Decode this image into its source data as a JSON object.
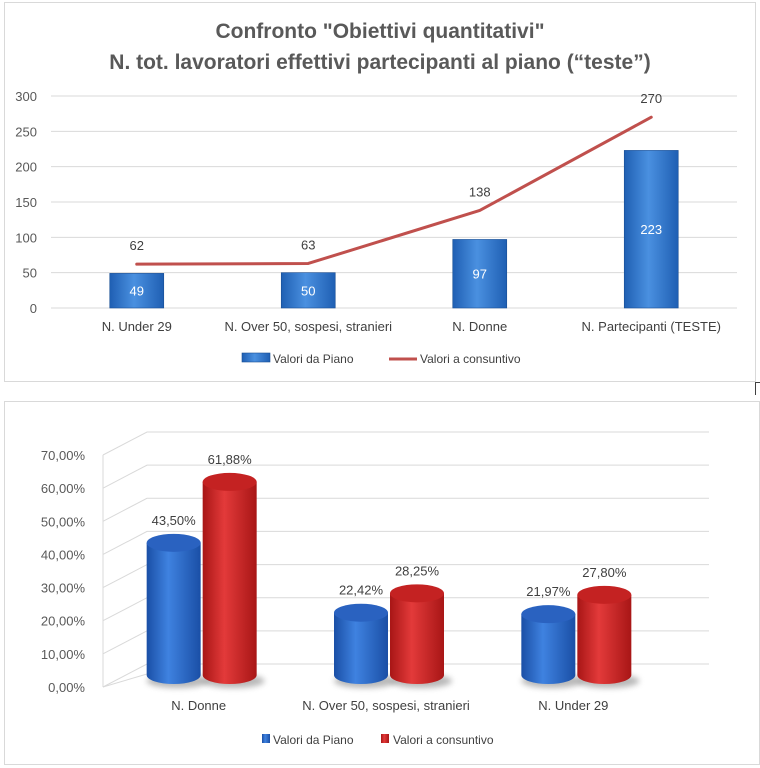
{
  "chart_data": [
    {
      "type": "bar",
      "title": "Confronto \"Obiettivi quantitativi\"",
      "subtitle": "N. tot. lavoratori effettivi partecipanti al piano (“teste”)",
      "categories": [
        "N. Under 29",
        "N. Over 50, sospesi, stranieri",
        "N. Donne",
        "N. Partecipanti (TESTE)"
      ],
      "series": [
        {
          "name": "Valori da Piano",
          "kind": "bar",
          "values": [
            49,
            50,
            97,
            223
          ],
          "color": "#2e75c8"
        },
        {
          "name": "Valori a consuntivo",
          "kind": "line",
          "values": [
            62,
            63,
            138,
            270
          ],
          "color": "#c0504d"
        }
      ],
      "ylim": [
        0,
        300
      ],
      "yticks": [
        "0",
        "50",
        "100",
        "150",
        "200",
        "250",
        "300"
      ],
      "grid": true,
      "legend": "bottom"
    },
    {
      "type": "bar",
      "style": "3d-cylinder",
      "categories": [
        "N. Donne",
        "N. Over 50, sospesi, stranieri",
        "N. Under 29"
      ],
      "series": [
        {
          "name": "Valori da Piano",
          "values": [
            43.5,
            22.42,
            21.97
          ],
          "labels": [
            "43,50%",
            "22,42%",
            "21,97%"
          ],
          "color": "#2566c7"
        },
        {
          "name": "Valori a consuntivo",
          "values": [
            61.88,
            28.25,
            27.8
          ],
          "labels": [
            "61,88%",
            "28,25%",
            "27,80%"
          ],
          "color": "#d42a2a"
        }
      ],
      "ylim": [
        0,
        70
      ],
      "yticks": [
        "0,00%",
        "10,00%",
        "20,00%",
        "30,00%",
        "40,00%",
        "50,00%",
        "60,00%",
        "70,00%"
      ],
      "grid": true,
      "legend": "bottom"
    }
  ]
}
